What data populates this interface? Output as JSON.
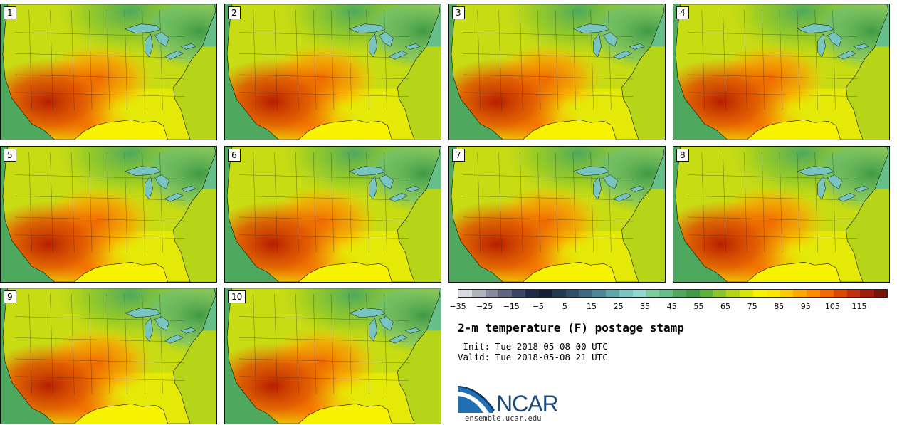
{
  "panels": [
    {
      "label": "1"
    },
    {
      "label": "2"
    },
    {
      "label": "3"
    },
    {
      "label": "4"
    },
    {
      "label": "5"
    },
    {
      "label": "6"
    },
    {
      "label": "7"
    },
    {
      "label": "8"
    },
    {
      "label": "9"
    },
    {
      "label": "10"
    }
  ],
  "colorbar": {
    "colors": [
      "#d8dbe0",
      "#aeb2bc",
      "#858aa0",
      "#5d6582",
      "#3a4565",
      "#1f2a48",
      "#142038",
      "#213a52",
      "#2f5068",
      "#3d6a80",
      "#4d8898",
      "#5ea8ac",
      "#78c4c0",
      "#8fd7cf",
      "#7ccd9c",
      "#66be88",
      "#4ea95e",
      "#3f9a44",
      "#5bb23a",
      "#88c62c",
      "#b6d418",
      "#dbe408",
      "#f6f200",
      "#ffe600",
      "#ffc800",
      "#ffa800",
      "#ff8a00",
      "#f26a00",
      "#dc4800",
      "#c43008",
      "#a01e08",
      "#7c1408"
    ],
    "ticks": [
      "−35",
      "−25",
      "−15",
      "−5",
      "5",
      "15",
      "25",
      "35",
      "45",
      "55",
      "65",
      "75",
      "85",
      "95",
      "105",
      "115"
    ]
  },
  "title": "2-m temperature (F) postage stamp",
  "init_line": " Init: Tue 2018-05-08 00 UTC",
  "valid_line": "Valid: Tue 2018-05-08 21 UTC",
  "logo_text": "NCAR",
  "site": "ensemble.ucar.edu"
}
